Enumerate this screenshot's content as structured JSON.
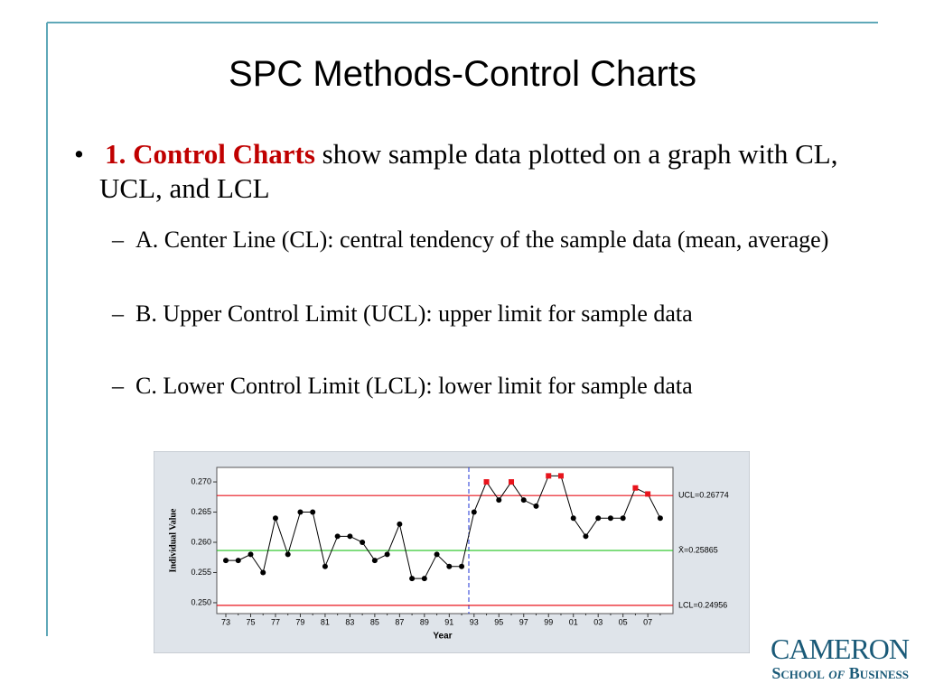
{
  "slide": {
    "title": "SPC Methods-Control Charts",
    "bullets": [
      {
        "lead": "1. Control Charts",
        "text": "show sample data plotted on a graph with CL, UCL, and LCL",
        "sub": [
          "A. Center Line (CL): central tendency of the sample data (mean, average)",
          "B. Upper Control Limit (UCL): upper limit for sample data",
          "C. Lower Control Limit (LCL): lower limit for sample data"
        ]
      }
    ]
  },
  "logo": {
    "name": "CAMERON",
    "line2": [
      "School",
      "of",
      "Business"
    ]
  },
  "chart_data": {
    "type": "line",
    "xlabel": "Year",
    "ylabel": "Individual Value",
    "categories": [
      "73",
      null,
      "75",
      null,
      "77",
      null,
      "79",
      null,
      "81",
      null,
      "83",
      null,
      "85",
      null,
      "87",
      null,
      "89",
      null,
      "91",
      null,
      "93",
      null,
      "95",
      null,
      "97",
      null,
      "99",
      null,
      "01",
      null,
      "03",
      null,
      "05",
      null,
      "07",
      null
    ],
    "series": [
      {
        "name": "Individual Value",
        "color": "#000000",
        "values": [
          0.257,
          0.257,
          0.258,
          0.255,
          0.264,
          0.258,
          0.265,
          0.265,
          0.256,
          0.261,
          0.261,
          0.26,
          0.257,
          0.258,
          0.263,
          0.254,
          0.254,
          0.258,
          0.256,
          0.256,
          0.265,
          0.27,
          0.267,
          0.27,
          0.267,
          0.266,
          0.271,
          0.271,
          0.264,
          0.261,
          0.264,
          0.264,
          0.264,
          0.269,
          0.268,
          0.264
        ]
      }
    ],
    "out_color": "#e8141c",
    "ylim": [
      0.2482,
      0.2724
    ],
    "yticks": [
      {
        "value": 0.25,
        "label": "0.250"
      },
      0.255,
      {
        "value": 0.26,
        "label": "0.260"
      },
      0.265,
      {
        "value": 0.27,
        "label": "0.270"
      }
    ],
    "reference_lines": [
      {
        "value": 0.26774,
        "label": "UCL=0.26774",
        "color": "#e8141c"
      },
      {
        "value": 0.25865,
        "label": "X̄=0.25865",
        "color": "#22c41e"
      },
      {
        "value": 0.24956,
        "label": "LCL=0.24956",
        "color": "#e8141c"
      }
    ]
  }
}
